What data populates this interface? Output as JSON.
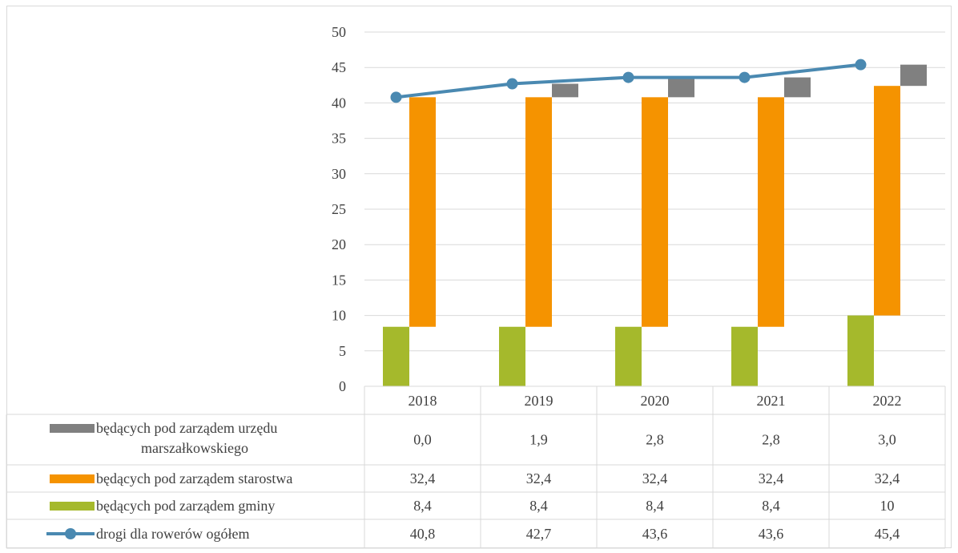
{
  "colors": {
    "urzad": "#808080",
    "starostwo": "#f59300",
    "gmina": "#a5b92c",
    "ogolem": "#4a89b1",
    "grid": "#d9d9d9",
    "text": "#404040"
  },
  "chart_data": {
    "type": "bar",
    "categories": [
      "2018",
      "2019",
      "2020",
      "2021",
      "2022"
    ],
    "ylim": [
      0,
      50
    ],
    "yticks": [
      "0",
      "5",
      "10",
      "15",
      "20",
      "25",
      "30",
      "35",
      "40",
      "45",
      "50"
    ],
    "grid": true,
    "legend": "data-table",
    "series": [
      {
        "key": "urzad",
        "name": "będących pod zarządem urzędu marszałkowskiego",
        "legend_lines": [
          "będących pod zarządem urzędu",
          "marszałkowskiego"
        ],
        "type": "floating-bar",
        "values": [
          0.0,
          1.9,
          2.8,
          2.8,
          3.0
        ],
        "bar_low": [
          40.8,
          40.8,
          40.8,
          40.8,
          42.4
        ],
        "bar_high": [
          40.8,
          42.7,
          43.6,
          43.6,
          45.4
        ],
        "labels": [
          "0,0",
          "1,9",
          "2,8",
          "2,8",
          "3,0"
        ]
      },
      {
        "key": "starostwo",
        "name": "będących pod zarządem starostwa",
        "legend_lines": [
          "będących pod zarządem starostwa"
        ],
        "type": "floating-bar",
        "values": [
          32.4,
          32.4,
          32.4,
          32.4,
          32.4
        ],
        "bar_low": [
          8.4,
          8.4,
          8.4,
          8.4,
          10
        ],
        "bar_high": [
          40.8,
          40.8,
          40.8,
          40.8,
          42.4
        ],
        "labels": [
          "32,4",
          "32,4",
          "32,4",
          "32,4",
          "32,4"
        ]
      },
      {
        "key": "gmina",
        "name": "będących pod zarządem gminy",
        "legend_lines": [
          "będących pod zarządem gminy"
        ],
        "type": "floating-bar",
        "values": [
          8.4,
          8.4,
          8.4,
          8.4,
          10
        ],
        "bar_low": [
          0,
          0,
          0,
          0,
          0
        ],
        "bar_high": [
          8.4,
          8.4,
          8.4,
          8.4,
          10
        ],
        "labels": [
          "8,4",
          "8,4",
          "8,4",
          "8,4",
          "10"
        ]
      },
      {
        "key": "ogolem",
        "name": "drogi dla rowerów ogółem",
        "legend_lines": [
          "drogi dla rowerów ogółem"
        ],
        "type": "line",
        "values": [
          40.8,
          42.7,
          43.6,
          43.6,
          45.4
        ],
        "labels": [
          "40,8",
          "42,7",
          "43,6",
          "43,6",
          "45,4"
        ]
      }
    ]
  }
}
